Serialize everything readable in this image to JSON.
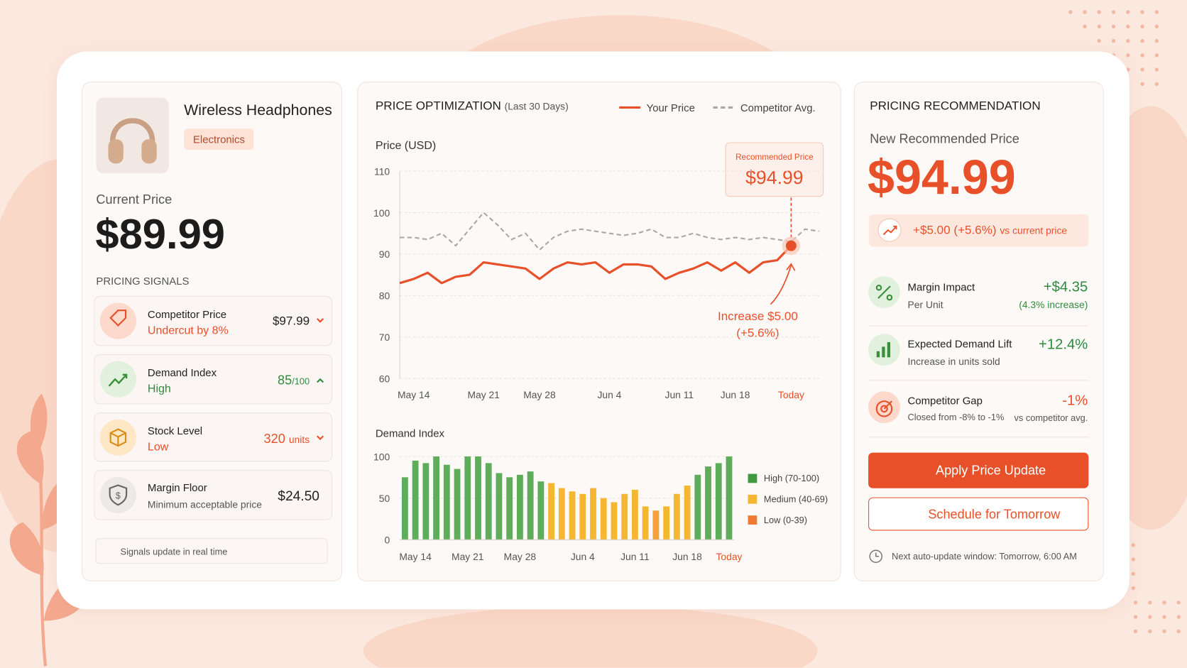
{
  "product": {
    "name": "Wireless Headphones",
    "category": "Electronics",
    "current_price_label": "Current Price",
    "current_price": "$89.99"
  },
  "signals": {
    "title": "PRICING SIGNALS",
    "items": [
      {
        "name": "Competitor Price",
        "status": "Undercut by 8%",
        "value": "$97.99"
      },
      {
        "name": "Demand Index",
        "status": "High",
        "value": "85",
        "unit": "/100"
      },
      {
        "name": "Stock Level",
        "status": "Low",
        "value": "320",
        "unit": "units"
      },
      {
        "name": "Margin Floor",
        "status": "Minimum acceptable price",
        "value": "$24.50"
      }
    ],
    "note": "Signals update in real time"
  },
  "chart_data": [
    {
      "type": "line",
      "title": "PRICE OPTIMIZATION",
      "subtitle": "(Last 30 Days)",
      "y_label": "Price (USD)",
      "categories": [
        null,
        "May 14",
        null,
        null,
        null,
        null,
        "May 21",
        null,
        null,
        null,
        "May 28",
        null,
        null,
        null,
        null,
        "Jun 4",
        null,
        null,
        null,
        null,
        "Jun 11",
        null,
        null,
        null,
        "Jun 18",
        null,
        null,
        null,
        "Today",
        null,
        null
      ],
      "series": [
        {
          "name": "Your Price",
          "color": "#e8502a",
          "values": [
            83,
            84,
            85.5,
            83,
            84.5,
            85,
            88,
            87.5,
            87,
            86.5,
            84,
            86.5,
            88,
            87.5,
            88,
            85.5,
            87.5,
            87.5,
            87,
            84,
            85.5,
            86.5,
            88,
            86,
            88,
            85.5,
            88,
            88.5,
            92,
            null,
            null
          ]
        },
        {
          "name": "Competitor Avg.",
          "color": "#a9a9a9",
          "dashed": true,
          "values": [
            94,
            94,
            93.5,
            95,
            92,
            96,
            100,
            97,
            93.5,
            95,
            91,
            94,
            95.5,
            96,
            95.5,
            95,
            94.5,
            95,
            96,
            94,
            94,
            95,
            94,
            93.5,
            94,
            93.5,
            94,
            93.5,
            93,
            96,
            95.5
          ]
        }
      ],
      "ylim": [
        60,
        110
      ],
      "yticks": [
        60,
        70,
        80,
        90,
        100,
        110
      ],
      "grid": true,
      "callout": {
        "title": "Recommended Price",
        "value": "$94.99"
      },
      "annotation": [
        "Increase $5.00",
        "(+5.6%)"
      ]
    },
    {
      "type": "bar",
      "title": "Demand Index",
      "categories": [
        null,
        "May 14",
        null,
        null,
        null,
        null,
        "May 21",
        null,
        null,
        null,
        null,
        "May 28",
        null,
        null,
        null,
        null,
        null,
        "Jun 4",
        null,
        null,
        null,
        null,
        "Jun 11",
        null,
        null,
        null,
        null,
        "Jun 18",
        null,
        null,
        null,
        "Today"
      ],
      "values": [
        75,
        95,
        92,
        100,
        90,
        85,
        100,
        100,
        92,
        80,
        75,
        78,
        82,
        70,
        68,
        62,
        58,
        55,
        62,
        50,
        45,
        55,
        60,
        40,
        35,
        40,
        55,
        65,
        78,
        88,
        92,
        100
      ],
      "colors": [
        "#5fad5a",
        "#5fad5a",
        "#5fad5a",
        "#5fad5a",
        "#5fad5a",
        "#5fad5a",
        "#5fad5a",
        "#5fad5a",
        "#5fad5a",
        "#5fad5a",
        "#5fad5a",
        "#5fad5a",
        "#5fad5a",
        "#5fad5a",
        "#f5b731",
        "#f5b731",
        "#f5b731",
        "#f5b731",
        "#f5b731",
        "#f5b731",
        "#f5b731",
        "#f5b731",
        "#f5b731",
        "#f5b731",
        "#f3a33a",
        "#f5b731",
        "#f5b731",
        "#f5b731",
        "#5fad5a",
        "#5fad5a",
        "#5fad5a",
        "#5fad5a"
      ],
      "ylim": [
        0,
        100
      ],
      "yticks": [
        0,
        50,
        100
      ],
      "grid": true,
      "legend": [
        {
          "label": "High (70-100)",
          "color": "#3f9a3f"
        },
        {
          "label": "Medium (40-69)",
          "color": "#f5b731"
        },
        {
          "label": "Low (0-39)",
          "color": "#ee7a33"
        }
      ]
    }
  ],
  "recommendation": {
    "title": "PRICING RECOMMENDATION",
    "subtitle": "New Recommended Price",
    "price": "$94.99",
    "change": "+$5.00 (+5.6%)",
    "change_suffix": "vs current price",
    "metrics": [
      {
        "name": "Margin Impact",
        "sub": "Per Unit",
        "value": "+$4.35",
        "detail": "(4.3% increase)"
      },
      {
        "name": "Expected Demand Lift",
        "sub": "Increase in units sold",
        "value": "+12.4%"
      },
      {
        "name": "Competitor Gap",
        "sub": "Closed from -8% to -1%",
        "value": "-1%",
        "detail": "vs competitor avg."
      }
    ],
    "buttons": [
      "Apply Price Update",
      "Schedule for Tomorrow"
    ],
    "footer": "Next auto-update window: Tomorrow, 6:00 AM"
  }
}
